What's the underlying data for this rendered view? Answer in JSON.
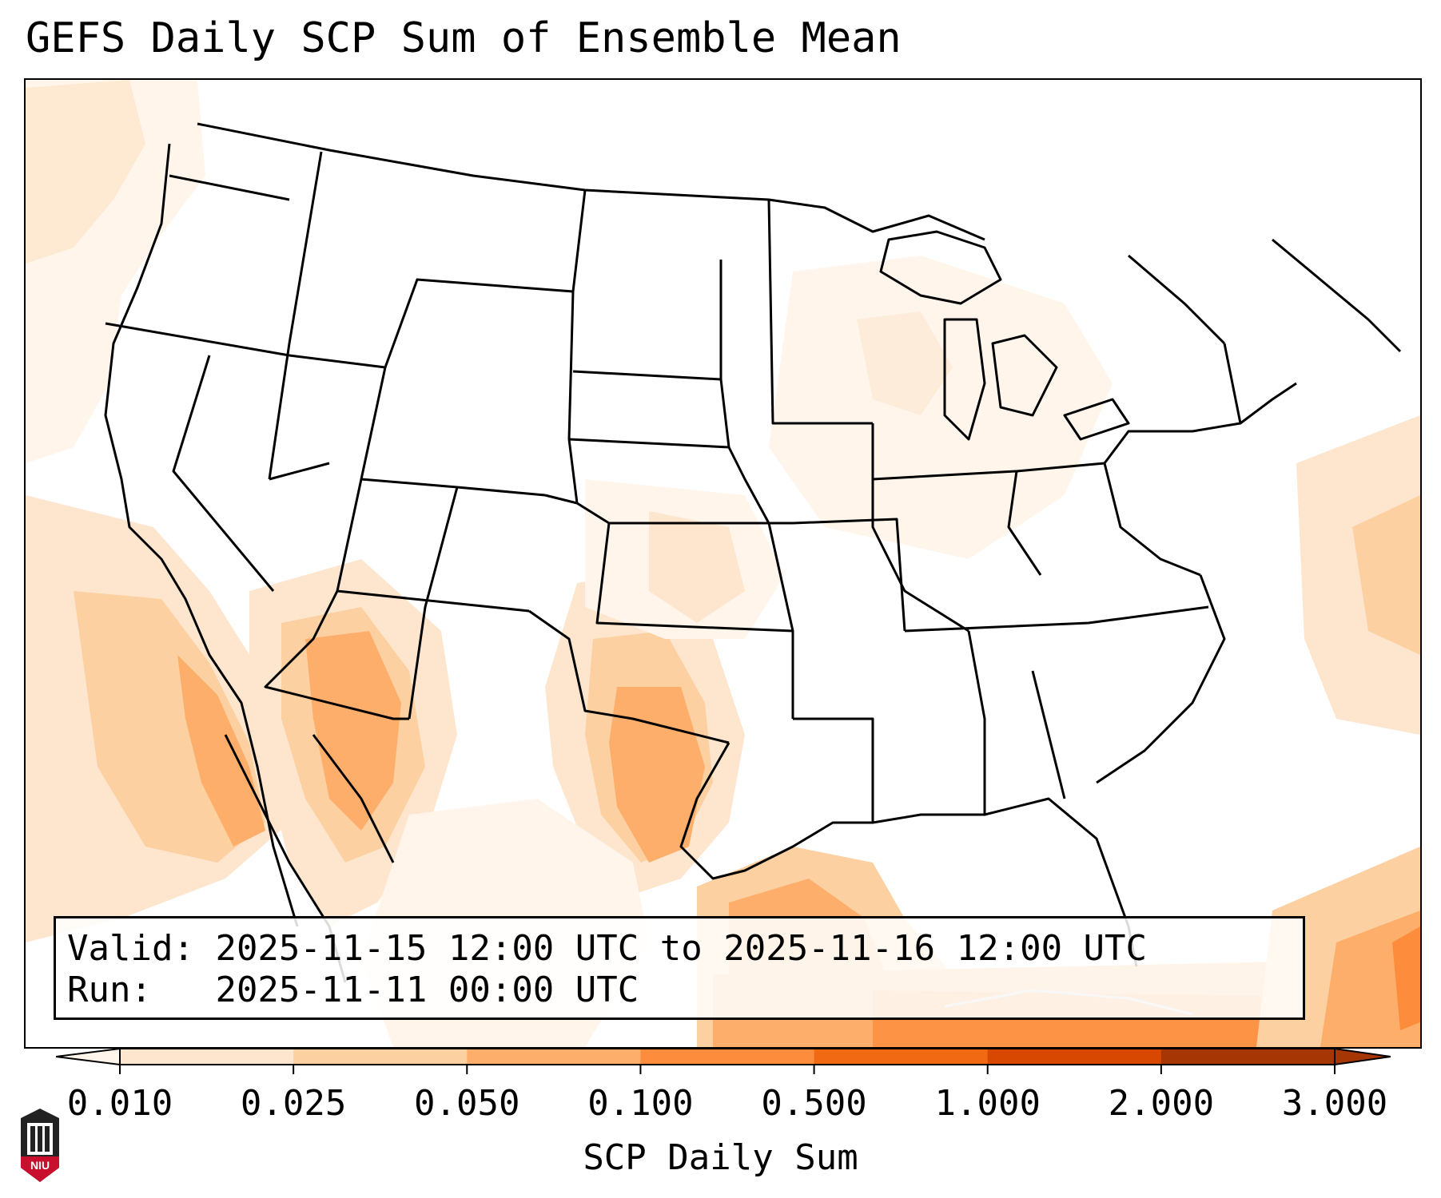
{
  "title": "GEFS Daily SCP Sum of Ensemble Mean",
  "info": {
    "valid_label": "Valid:",
    "valid_text": "2025-11-15 12:00 UTC to 2025-11-16 12:00 UTC",
    "run_label": "Run:",
    "run_text": "2025-11-11 00:00 UTC"
  },
  "colorbar": {
    "label": "SCP Daily Sum",
    "ticks": [
      "0.010",
      "0.025",
      "0.050",
      "0.100",
      "0.500",
      "1.000",
      "2.000",
      "3.000"
    ],
    "colors": [
      "#fee6ce",
      "#fdd0a2",
      "#fdae6b",
      "#fd8d3c",
      "#f16913",
      "#d94801",
      "#a63603"
    ],
    "under_color": "#fff5eb",
    "extend": "both"
  },
  "logo": {
    "text": "NIU",
    "colors": {
      "primary": "#c8102e",
      "dark": "#222222"
    }
  },
  "map": {
    "projection": "Lambert conformal, CONUS",
    "field_color_scale": "orange sequential"
  }
}
